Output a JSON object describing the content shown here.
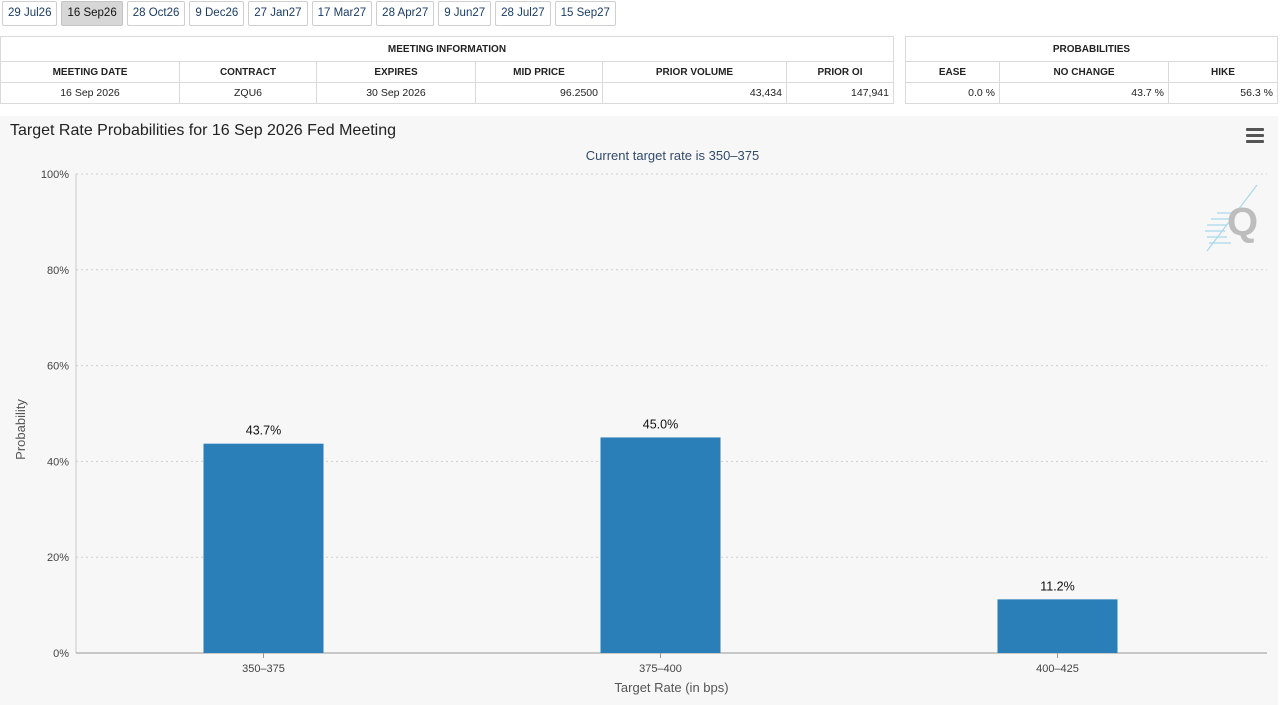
{
  "tabs": [
    {
      "label": "29 Jul26",
      "active": false
    },
    {
      "label": "16 Sep26",
      "active": true
    },
    {
      "label": "28 Oct26",
      "active": false
    },
    {
      "label": "9 Dec26",
      "active": false
    },
    {
      "label": "27 Jan27",
      "active": false
    },
    {
      "label": "17 Mar27",
      "active": false
    },
    {
      "label": "28 Apr27",
      "active": false
    },
    {
      "label": "9 Jun27",
      "active": false
    },
    {
      "label": "28 Jul27",
      "active": false
    },
    {
      "label": "15 Sep27",
      "active": false
    }
  ],
  "meeting_info": {
    "heading": "MEETING INFORMATION",
    "headers": [
      "MEETING DATE",
      "CONTRACT",
      "EXPIRES",
      "MID PRICE",
      "PRIOR VOLUME",
      "PRIOR OI"
    ],
    "row": [
      "16 Sep 2026",
      "ZQU6",
      "30 Sep 2026",
      "96.2500",
      "43,434",
      "147,941"
    ]
  },
  "probabilities": {
    "heading": "PROBABILITIES",
    "headers": [
      "EASE",
      "NO CHANGE",
      "HIKE"
    ],
    "row": [
      "0.0 %",
      "43.7 %",
      "56.3 %"
    ]
  },
  "chart": {
    "title": "Target Rate Probabilities for 16 Sep 2026 Fed Meeting",
    "subtitle": "Current target rate is 350–375",
    "menu_icon": "hamburger-menu-icon",
    "logo_icon": "q-logo-icon"
  },
  "chart_data": {
    "type": "bar",
    "categories": [
      "350–375",
      "375–400",
      "400–425"
    ],
    "values": [
      43.7,
      45.0,
      11.2
    ],
    "data_labels": [
      "43.7%",
      "45.0%",
      "11.2%"
    ],
    "xlabel": "Target Rate (in bps)",
    "ylabel": "Probability",
    "ylim": [
      0,
      100
    ],
    "yticks": [
      "0%",
      "20%",
      "40%",
      "60%",
      "80%",
      "100%"
    ],
    "ytick_values": [
      0,
      20,
      40,
      60,
      80,
      100
    ],
    "grid": true,
    "bar_color": "#2a7fb8"
  }
}
